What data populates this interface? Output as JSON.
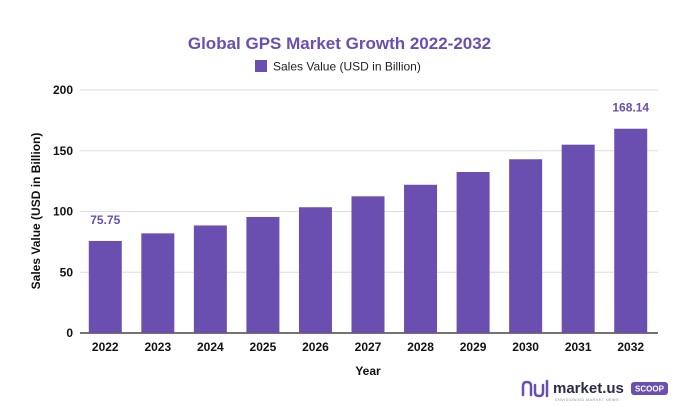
{
  "chart_data": {
    "type": "bar",
    "title": "Global GPS Market Growth 2022-2032",
    "legend": [
      "Sales Value (USD in Billion)"
    ],
    "legend_position": "top-center",
    "xlabel": "Year",
    "ylabel": "Sales Value (USD in Billion)",
    "categories": [
      "2022",
      "2023",
      "2024",
      "2025",
      "2026",
      "2027",
      "2028",
      "2029",
      "2030",
      "2031",
      "2032"
    ],
    "series": [
      {
        "name": "Sales Value (USD in Billion)",
        "values": [
          75.75,
          82,
          88.5,
          95.5,
          103.5,
          112.5,
          122,
          132.5,
          143,
          155,
          168.14
        ]
      }
    ],
    "data_labels": [
      {
        "category": "2022",
        "text": "75.75"
      },
      {
        "category": "2032",
        "text": "168.14"
      }
    ],
    "ylim": [
      0,
      200
    ],
    "yticks": [
      "0",
      "50",
      "100",
      "150",
      "200"
    ],
    "grid": true,
    "bar_color": "#6a4fb0"
  },
  "branding": {
    "logo_text": "market.us",
    "logo_subtext": "ENVISIONING MARKET NEWS",
    "badge": "SCOOP"
  },
  "colors": {
    "accent": "#6a4fb0",
    "grid": "#dddddd",
    "badge": "#6a4fb0"
  }
}
